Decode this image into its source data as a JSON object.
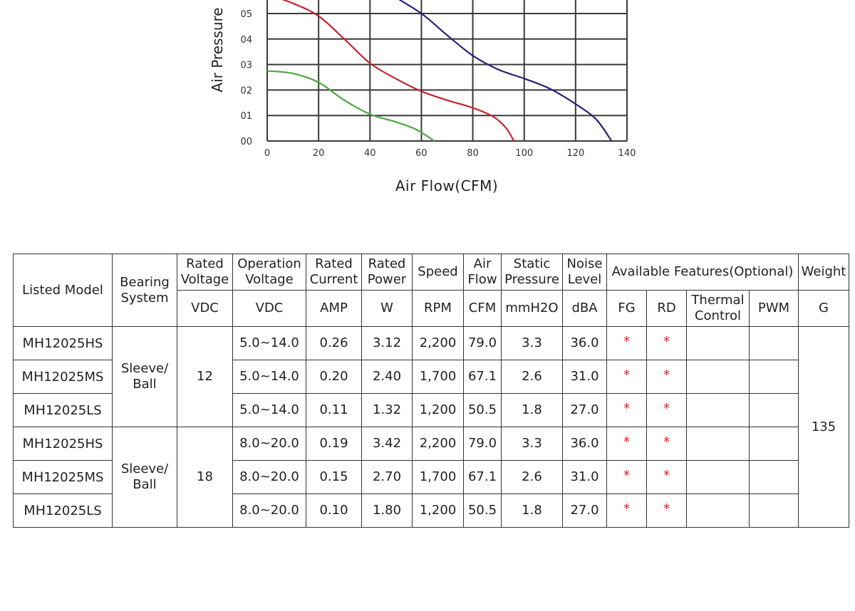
{
  "chart_data": {
    "type": "line",
    "xlabel": "Air Flow(CFM)",
    "ylabel": "Air Pressure",
    "x_ticks": [
      "0",
      "20",
      "40",
      "60",
      "80",
      "100",
      "120",
      "140"
    ],
    "y_ticks": [
      "00",
      "01",
      "02",
      "03",
      "04",
      "05"
    ],
    "xlim": [
      0,
      140
    ],
    "grid": true,
    "series": [
      {
        "color": "#50a844",
        "points": [
          [
            0,
            2.75
          ],
          [
            10,
            2.65
          ],
          [
            20,
            2.3
          ],
          [
            30,
            1.6
          ],
          [
            40,
            1.05
          ],
          [
            50,
            0.75
          ],
          [
            58,
            0.45
          ],
          [
            65,
            0
          ]
        ]
      },
      {
        "color": "#c4262c",
        "points": [
          [
            0,
            5.75
          ],
          [
            10,
            5.4
          ],
          [
            20,
            4.9
          ],
          [
            30,
            4.0
          ],
          [
            40,
            3.05
          ],
          [
            50,
            2.45
          ],
          [
            60,
            1.95
          ],
          [
            70,
            1.6
          ],
          [
            80,
            1.3
          ],
          [
            88,
            0.95
          ],
          [
            93,
            0.5
          ],
          [
            96,
            0
          ]
        ]
      },
      {
        "color": "#2a2078",
        "points": [
          [
            48,
            5.75
          ],
          [
            60,
            5.0
          ],
          [
            70,
            4.15
          ],
          [
            80,
            3.35
          ],
          [
            90,
            2.8
          ],
          [
            100,
            2.45
          ],
          [
            110,
            2.05
          ],
          [
            120,
            1.45
          ],
          [
            128,
            0.85
          ],
          [
            134,
            0
          ]
        ]
      }
    ]
  },
  "table": {
    "header_row1": {
      "model": "Listed Model",
      "bearing": "Bearing System",
      "rated_voltage": "Rated Voltage",
      "operation_voltage": "Operation Voltage",
      "rated_current": "Rated Current",
      "rated_power": "Rated Power",
      "speed": "Speed",
      "air_flow": "Air Flow",
      "static_pressure": "Static Pressure",
      "noise_level": "Noise Level",
      "features": "Available Features(Optional)",
      "weight": "Weight"
    },
    "header_row2": {
      "rated_voltage": "VDC",
      "operation_voltage": "VDC",
      "rated_current": "AMP",
      "rated_power": "W",
      "speed": "RPM",
      "air_flow": "CFM",
      "static_pressure": "mmH2O",
      "noise_level": "dBA",
      "fg": "FG",
      "rd": "RD",
      "thermal": "Thermal Control",
      "pwm": "PWM",
      "weight": "G"
    },
    "groups": [
      {
        "bearing": "Sleeve/ Ball",
        "voltage": "12"
      },
      {
        "bearing": "Sleeve/ Ball",
        "voltage": "18"
      }
    ],
    "weight_value": "135",
    "rows": [
      {
        "model_prefix": "MH",
        "model": "12025HS",
        "op_voltage": "5.0~14.0",
        "current": "0.26",
        "power": "3.12",
        "speed": "2,200",
        "flow": "79.0",
        "pressure": "3.3",
        "noise": "36.0",
        "fg": "*",
        "rd": "*"
      },
      {
        "model_prefix": "MH",
        "model": "12025MS",
        "op_voltage": "5.0~14.0",
        "current": "0.20",
        "power": "2.40",
        "speed": "1,700",
        "flow": "67.1",
        "pressure": "2.6",
        "noise": "31.0",
        "fg": "*",
        "rd": "*"
      },
      {
        "model_prefix": "MH",
        "model": "12025LS",
        "op_voltage": "5.0~14.0",
        "current": "0.11",
        "power": "1.32",
        "speed": "1,200",
        "flow": "50.5",
        "pressure": "1.8",
        "noise": "27.0",
        "fg": "*",
        "rd": "*"
      },
      {
        "model_prefix": "MH",
        "model": "12025HS",
        "op_voltage": "8.0~20.0",
        "current": "0.19",
        "power": "3.42",
        "speed": "2,200",
        "flow": "79.0",
        "pressure": "3.3",
        "noise": "36.0",
        "fg": "*",
        "rd": "*"
      },
      {
        "model_prefix": "MH",
        "model": "12025MS",
        "op_voltage": "8.0~20.0",
        "current": "0.15",
        "power": "2.70",
        "speed": "1,700",
        "flow": "67.1",
        "pressure": "2.6",
        "noise": "31.0",
        "fg": "*",
        "rd": "*"
      },
      {
        "model_prefix": "MH",
        "model": "12025LS",
        "op_voltage": "8.0~20.0",
        "current": "0.10",
        "power": "1.80",
        "speed": "1,200",
        "flow": "50.5",
        "pressure": "1.8",
        "noise": "27.0",
        "fg": "*",
        "rd": "*"
      }
    ]
  }
}
